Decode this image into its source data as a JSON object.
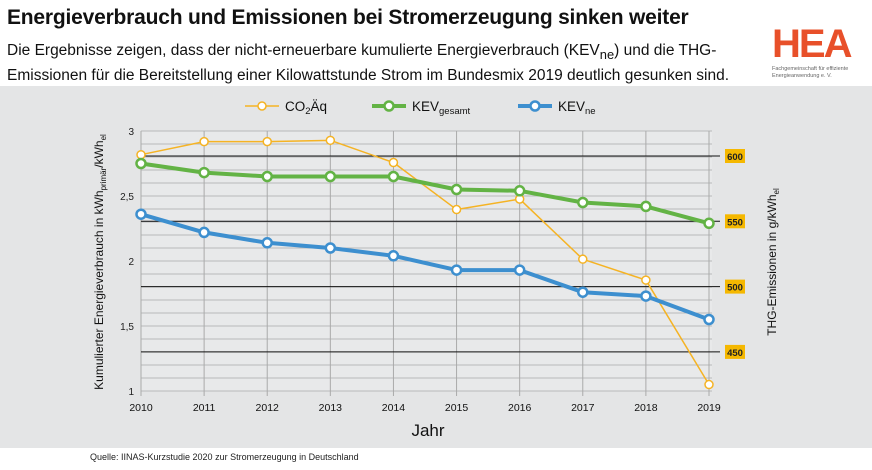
{
  "header": {
    "title": "Energieverbrauch und Emissionen bei Stromerzeugung sinken weiter",
    "subtitle_parts": [
      "Die Ergebnisse zeigen, dass der nicht-erneuerbare kumulierte Energieverbrauch (KEV",
      "ne",
      ") und die THG-Emissionen für die Bereitstellung einer Kilowattstunde Strom im Bundesmix 2019 deutlich gesunken sind."
    ]
  },
  "logo": {
    "mark": "HEA",
    "sub": "Fachgemeinschaft für effiziente Energieanwendung e. V."
  },
  "source": "Quelle: IINAS-Kurzstudie 2020 zur Stromerzeugung in Deutschland",
  "chart_data": {
    "type": "line",
    "xlabel": "Jahr",
    "ylabel_left": {
      "main": "Kumulierter Energieverbrauch in kWh",
      "sub1": "primär",
      "mid": "/kWh",
      "sub2": "el"
    },
    "ylabel_right": {
      "main": "THG-Emissionen in g/kWh",
      "sub": "el"
    },
    "x": [
      2010,
      2011,
      2012,
      2013,
      2014,
      2015,
      2016,
      2017,
      2018,
      2019
    ],
    "ylim_left": [
      1,
      3
    ],
    "yticks_left": [
      "1",
      "1,5",
      "2",
      "2,5",
      "3"
    ],
    "ylim_right": [
      412,
      659
    ],
    "yticks_right": [
      "450",
      "500",
      "550",
      "600"
    ],
    "grid": true,
    "legend_position": "top",
    "series": [
      {
        "name": "CO2Äq",
        "name_main": "CO",
        "name_sub": "2",
        "name_rest": "Äq",
        "axis": "right",
        "color": "#f5b324",
        "values": [
          601,
          611,
          611,
          612,
          595,
          559,
          567,
          521,
          505,
          425
        ]
      },
      {
        "name": "KEVgesamt",
        "name_main": "KEV",
        "name_sub": "gesamt",
        "axis": "left",
        "color": "#63b345",
        "values": [
          2.75,
          2.68,
          2.65,
          2.65,
          2.65,
          2.55,
          2.54,
          2.45,
          2.42,
          2.29
        ]
      },
      {
        "name": "KEVne",
        "name_main": "KEV",
        "name_sub": "ne",
        "axis": "left",
        "color": "#3d8fcf",
        "values": [
          2.36,
          2.22,
          2.14,
          2.1,
          2.04,
          1.93,
          1.93,
          1.76,
          1.73,
          1.55
        ]
      }
    ]
  }
}
